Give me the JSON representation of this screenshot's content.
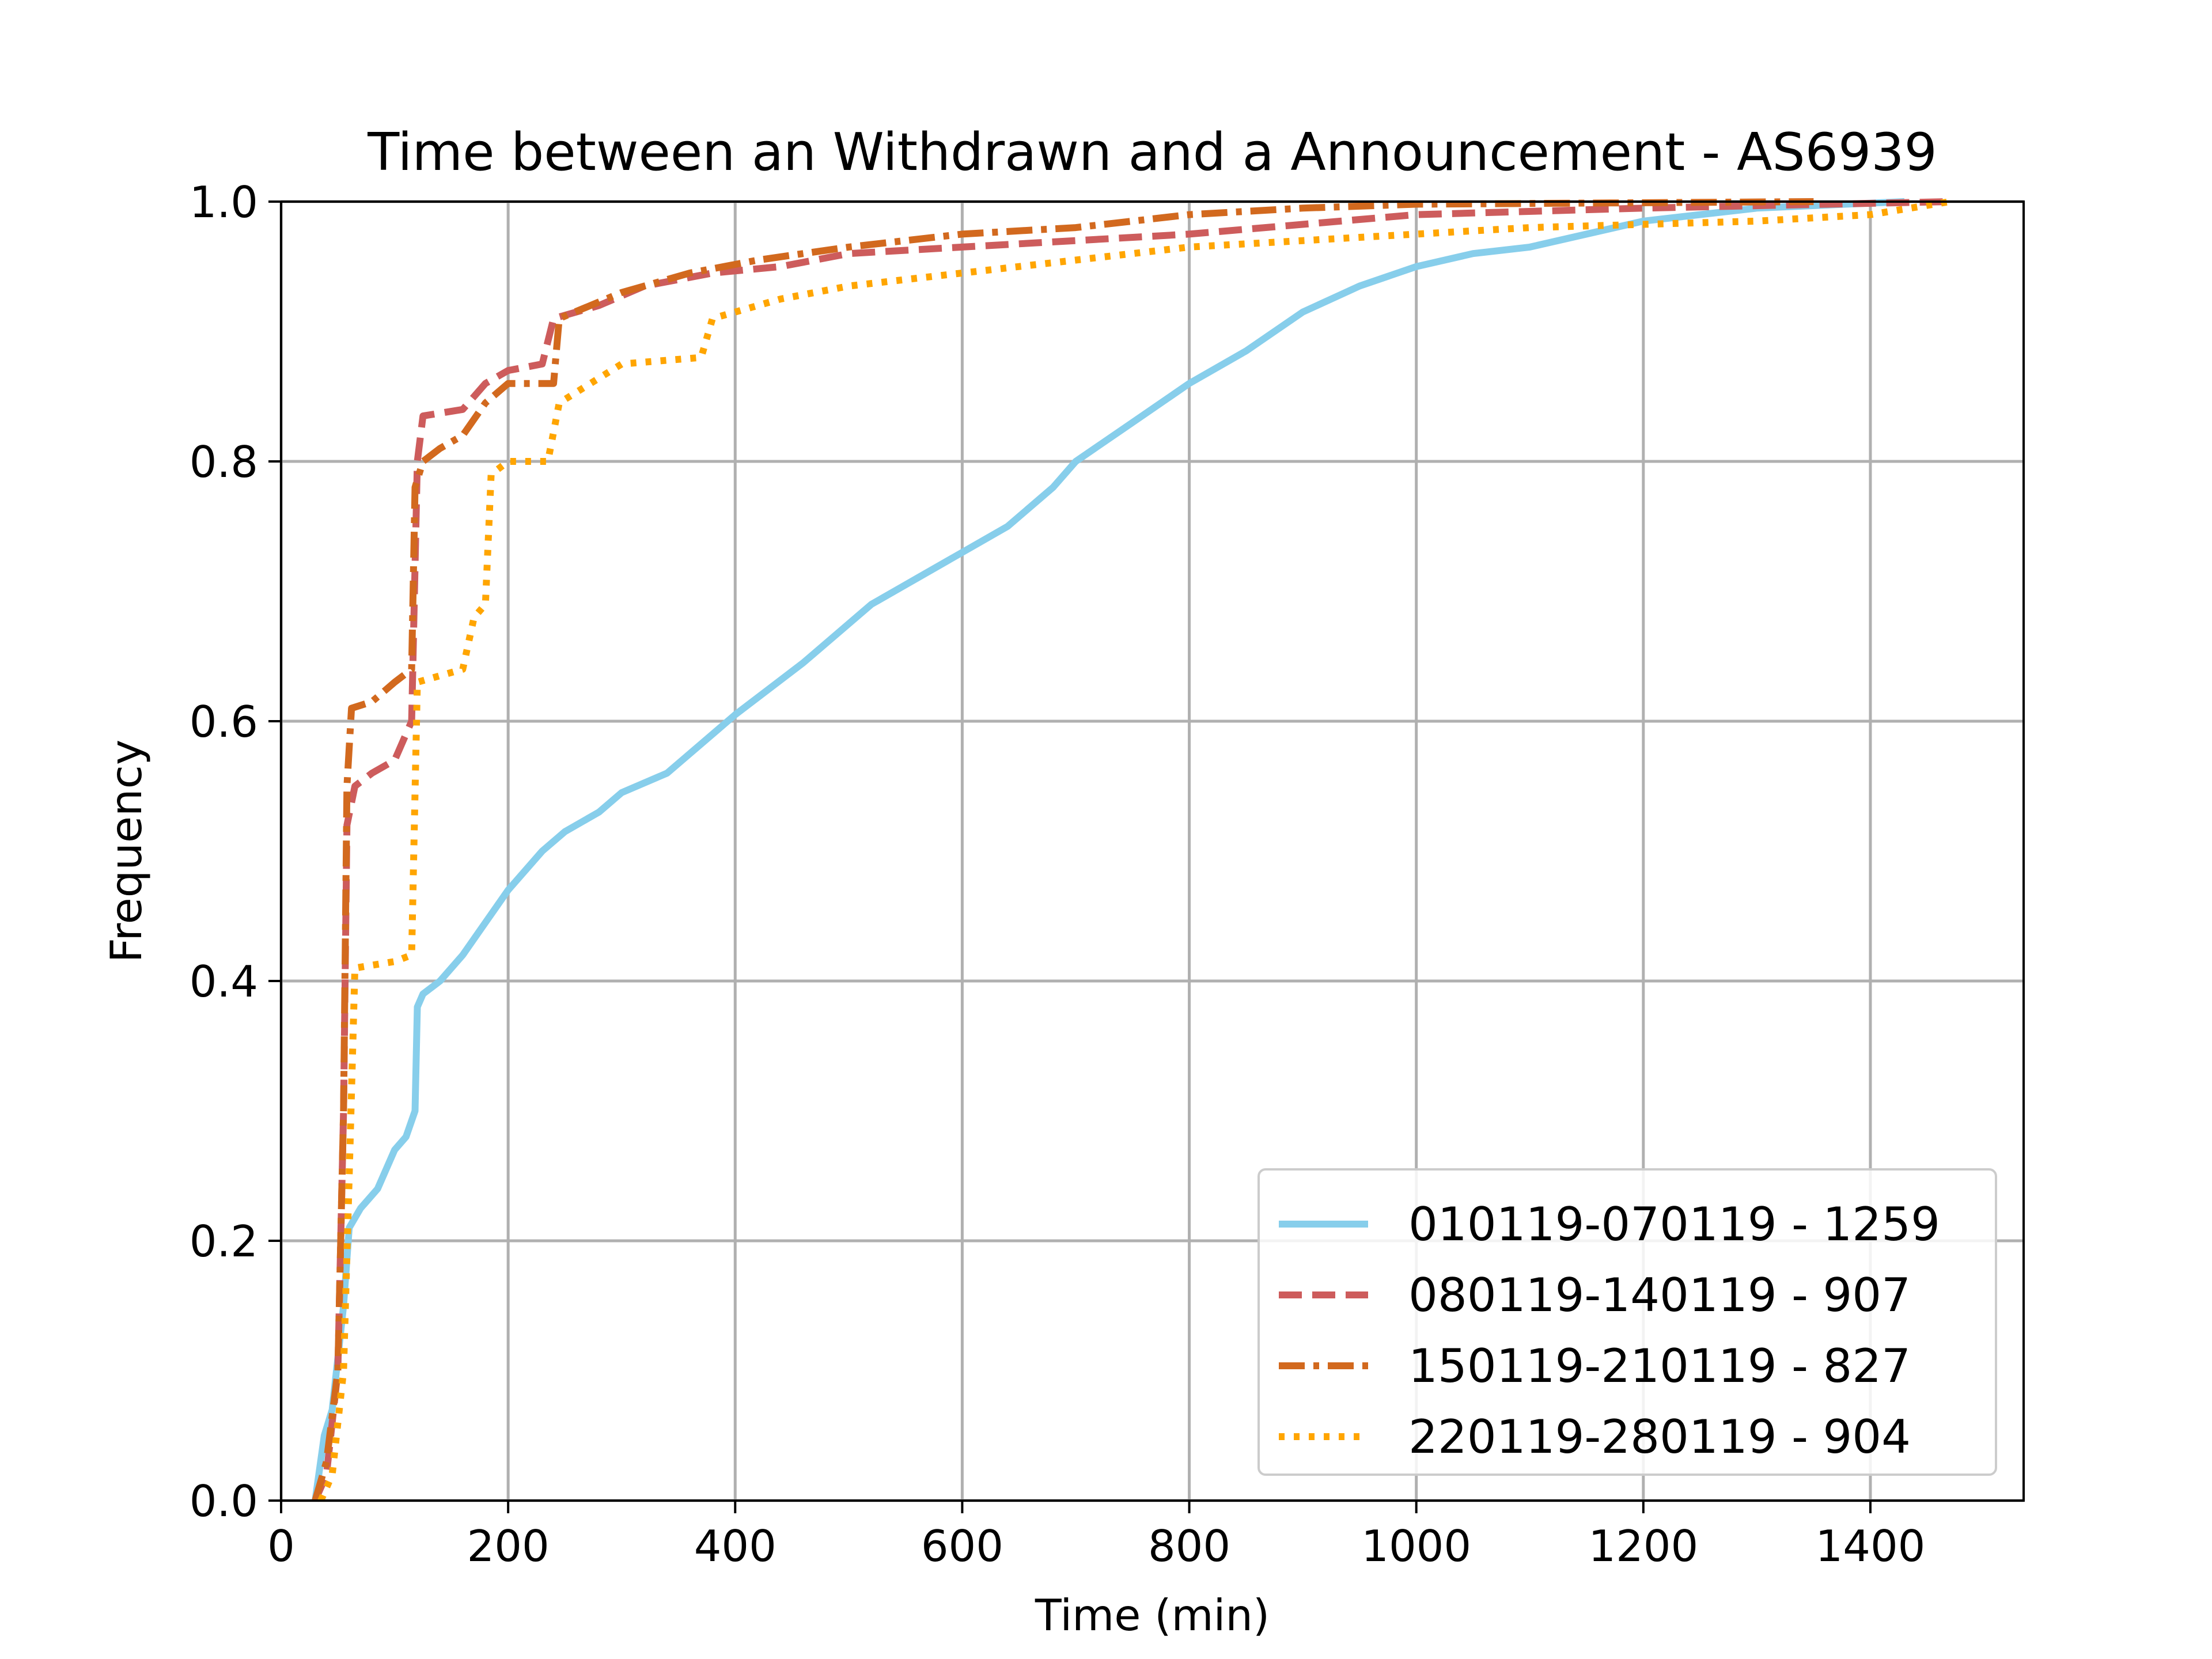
{
  "chart_data": {
    "type": "line",
    "title": "Time between an Withdrawn and a Announcement - AS6939",
    "xlabel": "Time (min)",
    "ylabel": "Frequency",
    "xlim": [
      0,
      1535
    ],
    "ylim": [
      0,
      1.0
    ],
    "xticks": [
      0,
      200,
      400,
      600,
      800,
      1000,
      1200,
      1400
    ],
    "xtick_labels": [
      "0",
      "200",
      "400",
      "600",
      "800",
      "1000",
      "1200",
      "1400"
    ],
    "yticks": [
      0.0,
      0.2,
      0.4,
      0.6,
      0.8,
      1.0
    ],
    "ytick_labels": [
      "0.0",
      "0.2",
      "0.4",
      "0.6",
      "0.8",
      "1.0"
    ],
    "grid": true,
    "legend_position": "lower-right",
    "series": [
      {
        "name": "010119-070119 - 1259",
        "color": "#87ceeb",
        "dash": "solid",
        "points": [
          [
            30,
            0
          ],
          [
            38,
            0.05
          ],
          [
            45,
            0.07
          ],
          [
            55,
            0.15
          ],
          [
            60,
            0.21
          ],
          [
            70,
            0.225
          ],
          [
            85,
            0.24
          ],
          [
            100,
            0.27
          ],
          [
            110,
            0.28
          ],
          [
            118,
            0.3
          ],
          [
            120,
            0.38
          ],
          [
            125,
            0.39
          ],
          [
            140,
            0.4
          ],
          [
            160,
            0.42
          ],
          [
            180,
            0.445
          ],
          [
            200,
            0.47
          ],
          [
            230,
            0.5
          ],
          [
            250,
            0.515
          ],
          [
            280,
            0.53
          ],
          [
            300,
            0.545
          ],
          [
            340,
            0.56
          ],
          [
            380,
            0.59
          ],
          [
            400,
            0.605
          ],
          [
            430,
            0.625
          ],
          [
            460,
            0.645
          ],
          [
            500,
            0.675
          ],
          [
            520,
            0.69
          ],
          [
            560,
            0.71
          ],
          [
            600,
            0.73
          ],
          [
            640,
            0.75
          ],
          [
            680,
            0.78
          ],
          [
            700,
            0.8
          ],
          [
            750,
            0.83
          ],
          [
            800,
            0.86
          ],
          [
            850,
            0.885
          ],
          [
            900,
            0.915
          ],
          [
            950,
            0.935
          ],
          [
            1000,
            0.95
          ],
          [
            1050,
            0.96
          ],
          [
            1100,
            0.965
          ],
          [
            1150,
            0.975
          ],
          [
            1200,
            0.985
          ],
          [
            1300,
            0.995
          ],
          [
            1430,
            1.0
          ]
        ]
      },
      {
        "name": "080119-140119 - 907",
        "color": "#cd5c5c",
        "dash": "dashed",
        "points": [
          [
            30,
            0
          ],
          [
            40,
            0.02
          ],
          [
            50,
            0.1
          ],
          [
            55,
            0.3
          ],
          [
            58,
            0.52
          ],
          [
            65,
            0.55
          ],
          [
            80,
            0.56
          ],
          [
            100,
            0.57
          ],
          [
            115,
            0.6
          ],
          [
            120,
            0.8
          ],
          [
            125,
            0.835
          ],
          [
            160,
            0.84
          ],
          [
            180,
            0.86
          ],
          [
            200,
            0.87
          ],
          [
            230,
            0.875
          ],
          [
            240,
            0.91
          ],
          [
            280,
            0.92
          ],
          [
            320,
            0.935
          ],
          [
            380,
            0.945
          ],
          [
            440,
            0.95
          ],
          [
            500,
            0.96
          ],
          [
            600,
            0.965
          ],
          [
            700,
            0.97
          ],
          [
            800,
            0.975
          ],
          [
            1000,
            0.99
          ],
          [
            1200,
            0.995
          ],
          [
            1470,
            1.0
          ]
        ]
      },
      {
        "name": "150119-210119 - 827",
        "color": "#d2691e",
        "dash": "dashdot",
        "points": [
          [
            30,
            0
          ],
          [
            40,
            0.03
          ],
          [
            50,
            0.1
          ],
          [
            55,
            0.3
          ],
          [
            58,
            0.55
          ],
          [
            62,
            0.61
          ],
          [
            80,
            0.615
          ],
          [
            100,
            0.63
          ],
          [
            115,
            0.64
          ],
          [
            118,
            0.78
          ],
          [
            125,
            0.8
          ],
          [
            140,
            0.81
          ],
          [
            160,
            0.82
          ],
          [
            180,
            0.845
          ],
          [
            200,
            0.86
          ],
          [
            240,
            0.86
          ],
          [
            245,
            0.91
          ],
          [
            300,
            0.93
          ],
          [
            360,
            0.945
          ],
          [
            420,
            0.955
          ],
          [
            500,
            0.965
          ],
          [
            600,
            0.975
          ],
          [
            700,
            0.98
          ],
          [
            800,
            0.99
          ],
          [
            900,
            0.995
          ],
          [
            1000,
            0.998
          ],
          [
            1350,
            1.0
          ]
        ]
      },
      {
        "name": "220119-280119 - 904",
        "color": "#ffa500",
        "dash": "dotted",
        "points": [
          [
            35,
            0
          ],
          [
            45,
            0.02
          ],
          [
            55,
            0.1
          ],
          [
            60,
            0.25
          ],
          [
            65,
            0.41
          ],
          [
            100,
            0.415
          ],
          [
            115,
            0.42
          ],
          [
            120,
            0.63
          ],
          [
            160,
            0.64
          ],
          [
            170,
            0.68
          ],
          [
            180,
            0.69
          ],
          [
            185,
            0.79
          ],
          [
            200,
            0.8
          ],
          [
            235,
            0.8
          ],
          [
            245,
            0.845
          ],
          [
            300,
            0.875
          ],
          [
            370,
            0.88
          ],
          [
            380,
            0.91
          ],
          [
            440,
            0.925
          ],
          [
            500,
            0.935
          ],
          [
            600,
            0.945
          ],
          [
            700,
            0.955
          ],
          [
            800,
            0.965
          ],
          [
            900,
            0.97
          ],
          [
            1000,
            0.975
          ],
          [
            1100,
            0.98
          ],
          [
            1300,
            0.985
          ],
          [
            1400,
            0.99
          ],
          [
            1470,
            1.0
          ]
        ]
      }
    ]
  }
}
